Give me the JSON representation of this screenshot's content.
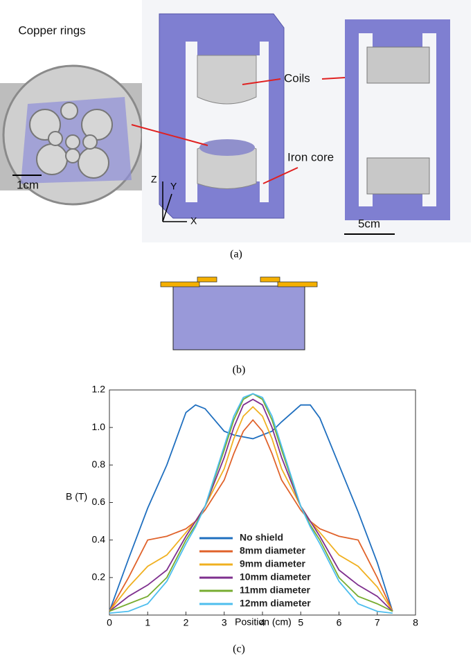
{
  "panel_a": {
    "labels": {
      "copper_rings": "Copper rings",
      "scale_1cm": "1cm",
      "coils": "Coils",
      "iron_core": "Iron core",
      "scale_5cm": "5cm",
      "axis_z": "Z",
      "axis_y": "Y",
      "axis_x": "X"
    },
    "caption": "(a)"
  },
  "panel_b": {
    "caption": "(b)"
  },
  "chart_data": {
    "type": "line",
    "ylabel": "B (T)",
    "xlabel": "Position (cm)",
    "x": [
      0,
      0.5,
      1,
      1.5,
      2,
      2.25,
      2.5,
      3,
      3.25,
      3.5,
      3.75,
      4,
      4.25,
      4.5,
      5,
      5.25,
      5.5,
      6,
      6.5,
      7,
      7.4
    ],
    "series": [
      {
        "name": "No shield",
        "color": "#1f6fbf",
        "values": [
          0.02,
          0.3,
          0.57,
          0.8,
          1.08,
          1.12,
          1.1,
          0.98,
          0.96,
          0.95,
          0.94,
          0.96,
          0.98,
          1.03,
          1.12,
          1.12,
          1.05,
          0.8,
          0.55,
          0.28,
          0.02
        ]
      },
      {
        "name": "8mm diameter",
        "color": "#e0622a",
        "values": [
          0.02,
          0.2,
          0.4,
          0.42,
          0.46,
          0.5,
          0.56,
          0.72,
          0.86,
          0.98,
          1.04,
          0.98,
          0.86,
          0.72,
          0.56,
          0.5,
          0.46,
          0.42,
          0.4,
          0.2,
          0.02
        ]
      },
      {
        "name": "9mm diameter",
        "color": "#f0b020",
        "values": [
          0.02,
          0.15,
          0.26,
          0.32,
          0.44,
          0.5,
          0.58,
          0.78,
          0.94,
          1.06,
          1.11,
          1.06,
          0.94,
          0.78,
          0.58,
          0.5,
          0.44,
          0.32,
          0.26,
          0.15,
          0.02
        ]
      },
      {
        "name": "10mm diameter",
        "color": "#7e2f8e",
        "values": [
          0.02,
          0.1,
          0.16,
          0.24,
          0.42,
          0.5,
          0.58,
          0.84,
          1.0,
          1.12,
          1.15,
          1.12,
          1.0,
          0.84,
          0.58,
          0.5,
          0.42,
          0.24,
          0.16,
          0.1,
          0.02
        ]
      },
      {
        "name": "11mm diameter",
        "color": "#77ac30",
        "values": [
          0.02,
          0.06,
          0.1,
          0.2,
          0.4,
          0.48,
          0.58,
          0.88,
          1.04,
          1.15,
          1.18,
          1.15,
          1.04,
          0.88,
          0.58,
          0.48,
          0.4,
          0.2,
          0.1,
          0.06,
          0.02
        ]
      },
      {
        "name": "12mm diameter",
        "color": "#4dbeee",
        "values": [
          0.01,
          0.02,
          0.06,
          0.18,
          0.38,
          0.47,
          0.58,
          0.9,
          1.06,
          1.16,
          1.18,
          1.16,
          1.06,
          0.9,
          0.58,
          0.47,
          0.38,
          0.18,
          0.06,
          0.02,
          0.01
        ]
      }
    ],
    "xlim": [
      0,
      8
    ],
    "xticks": [
      0,
      1,
      2,
      3,
      4,
      5,
      6,
      7,
      8
    ],
    "ylim": [
      0,
      1.2
    ],
    "yticks": [
      0.2,
      0.4,
      0.6,
      0.8,
      {
        "value": 1,
        "label": "1.0"
      },
      1.2
    ]
  },
  "caption_c": "(c)"
}
